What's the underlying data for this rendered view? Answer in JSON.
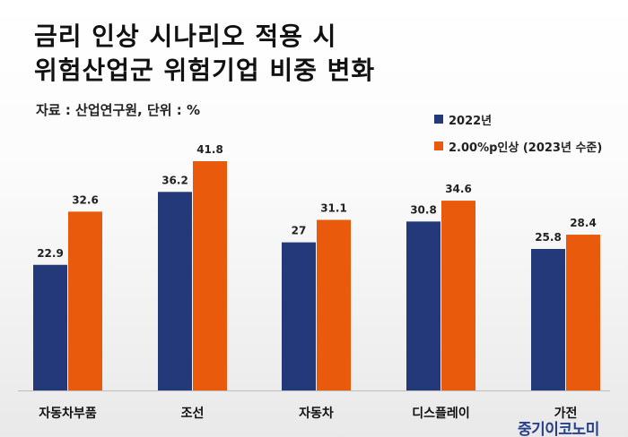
{
  "title": {
    "line1": "금리 인상 시나리오 적용 시",
    "line2": "위험산업군 위험기업 비중 변화"
  },
  "source": "자료 : 산업연구원, 단위 : %",
  "watermark": "중기이코노미",
  "colors": {
    "series1": "#23397a",
    "series2": "#ea5a0c"
  },
  "chart_data": {
    "type": "bar",
    "title": "금리 인상 시나리오 적용 시 위험산업군 위험기업 비중 변화",
    "ylabel": "",
    "xlabel": "",
    "unit": "%",
    "categories": [
      "자동차부품",
      "조선",
      "자동차",
      "디스플레이",
      "가전"
    ],
    "series": [
      {
        "name": "2022년",
        "values": [
          22.9,
          36.2,
          27,
          30.8,
          25.8
        ]
      },
      {
        "name": "2.00%p인상 (2023년 수준)",
        "values": [
          32.6,
          41.8,
          31.1,
          34.6,
          28.4
        ]
      }
    ],
    "data_labels": [
      [
        "22.9",
        "36.2",
        "27",
        "30.8",
        "25.8"
      ],
      [
        "32.6",
        "41.8",
        "31.1",
        "34.6",
        "28.4"
      ]
    ],
    "ylim": [
      0,
      46
    ],
    "grid": false,
    "legend_position": "top-right"
  }
}
